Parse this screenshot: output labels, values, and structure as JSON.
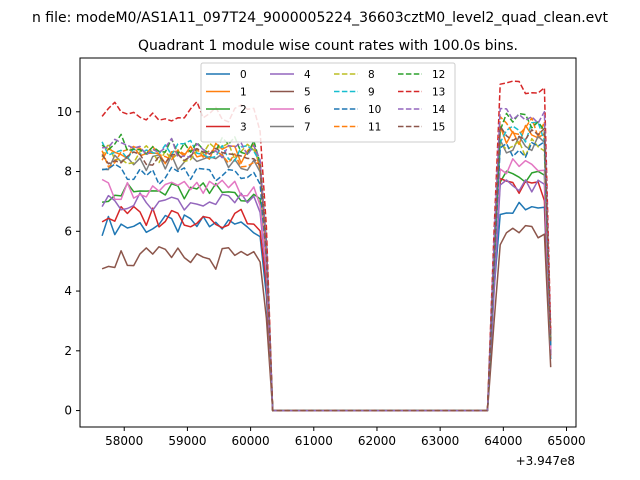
{
  "chart_data": {
    "type": "line",
    "suptitle": "n file: modeM0/AS1A11_097T24_9000005224_36603cztM0_level2_quad_clean.evt",
    "title": "Quadrant 1 module wise count rates with 100.0s bins.",
    "xlabel": "",
    "ylabel": "",
    "x_offset_text": "+3.947e8",
    "xlim": [
      57300,
      65150
    ],
    "ylim": [
      -0.55,
      11.8
    ],
    "xticks": [
      58000,
      59000,
      60000,
      61000,
      62000,
      63000,
      64000,
      65000
    ],
    "yticks": [
      0,
      2,
      4,
      6,
      8,
      10
    ],
    "grid": false,
    "legend": {
      "placement": "top-center",
      "columns": 4
    },
    "x_start": 57650,
    "x_step": 100,
    "n_points": 72,
    "gap": {
      "start": 60350,
      "end": 63750,
      "value": 0
    },
    "series": [
      {
        "name": "0",
        "color": "#1f77b4",
        "style": "solid",
        "level1": 6.2,
        "level2": 6.9,
        "amp": 0.35
      },
      {
        "name": "1",
        "color": "#ff7f0e",
        "style": "solid",
        "level1": 8.6,
        "level2": 9.2,
        "amp": 0.35
      },
      {
        "name": "2",
        "color": "#2ca02c",
        "style": "solid",
        "level1": 7.3,
        "level2": 7.8,
        "amp": 0.35
      },
      {
        "name": "3",
        "color": "#d62728",
        "style": "solid",
        "level1": 6.5,
        "level2": 7.4,
        "amp": 0.4
      },
      {
        "name": "4",
        "color": "#9467bd",
        "style": "solid",
        "level1": 7.0,
        "level2": 7.5,
        "amp": 0.3
      },
      {
        "name": "5",
        "color": "#8c564b",
        "style": "solid",
        "level1": 5.1,
        "level2": 5.8,
        "amp": 0.4
      },
      {
        "name": "6",
        "color": "#e377c2",
        "style": "solid",
        "level1": 7.4,
        "level2": 8.2,
        "amp": 0.35
      },
      {
        "name": "7",
        "color": "#7f7f7f",
        "style": "solid",
        "level1": 8.3,
        "level2": 8.9,
        "amp": 0.3
      },
      {
        "name": "8",
        "color": "#bcbd22",
        "style": "dashed",
        "level1": 8.6,
        "level2": 8.8,
        "amp": 0.35
      },
      {
        "name": "9",
        "color": "#17becf",
        "style": "dashed",
        "level1": 8.7,
        "level2": 9.3,
        "amp": 0.35
      },
      {
        "name": "10",
        "color": "#1f77b4",
        "style": "dashed",
        "level1": 7.9,
        "level2": 8.7,
        "amp": 0.35
      },
      {
        "name": "11",
        "color": "#ff7f0e",
        "style": "dashed",
        "level1": 8.5,
        "level2": 9.5,
        "amp": 0.35
      },
      {
        "name": "12",
        "color": "#2ca02c",
        "style": "dashed",
        "level1": 8.9,
        "level2": 9.6,
        "amp": 0.35
      },
      {
        "name": "13",
        "color": "#d62728",
        "style": "dashed",
        "level1": 10.0,
        "level2": 10.8,
        "amp": 0.35
      },
      {
        "name": "14",
        "color": "#9467bd",
        "style": "dashed",
        "level1": 8.8,
        "level2": 9.9,
        "amp": 0.35
      },
      {
        "name": "15",
        "color": "#8c564b",
        "style": "dashed",
        "level1": 8.5,
        "level2": 9.3,
        "amp": 0.3
      }
    ]
  }
}
